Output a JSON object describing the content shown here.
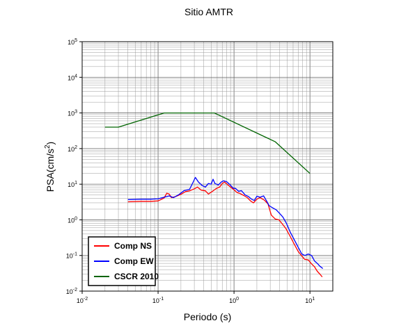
{
  "chart_data": {
    "type": "line",
    "title": "Sitio AMTR",
    "xlabel": "Periodo (s)",
    "ylabel": "PSA(cm/s",
    "ylabel_sup": "2",
    "ylabel_close": ")",
    "x_scale": "log",
    "y_scale": "log",
    "xlim": [
      0.01,
      20
    ],
    "ylim": [
      0.01,
      100000
    ],
    "grid": true,
    "legend_position": "bottom-left",
    "x_ticks": [
      {
        "base": "10",
        "exp": "-2",
        "value": 0.01
      },
      {
        "base": "10",
        "exp": "-1",
        "value": 0.1
      },
      {
        "base": "10",
        "exp": "0",
        "value": 1
      },
      {
        "base": "10",
        "exp": "1",
        "value": 10
      }
    ],
    "y_ticks": [
      {
        "base": "10",
        "exp": "-2",
        "value": 0.01
      },
      {
        "base": "10",
        "exp": "-1",
        "value": 0.1
      },
      {
        "base": "10",
        "exp": "0",
        "value": 1
      },
      {
        "base": "10",
        "exp": "1",
        "value": 10
      },
      {
        "base": "10",
        "exp": "2",
        "value": 100
      },
      {
        "base": "10",
        "exp": "3",
        "value": 1000
      },
      {
        "base": "10",
        "exp": "4",
        "value": 10000
      },
      {
        "base": "10",
        "exp": "5",
        "value": 100000
      }
    ],
    "series": [
      {
        "name": "Comp NS",
        "color": "#ff0000",
        "points": [
          [
            0.04,
            3.2
          ],
          [
            0.06,
            3.3
          ],
          [
            0.08,
            3.3
          ],
          [
            0.1,
            3.4
          ],
          [
            0.12,
            4.1
          ],
          [
            0.13,
            5.6
          ],
          [
            0.14,
            5.3
          ],
          [
            0.15,
            4.2
          ],
          [
            0.17,
            4.5
          ],
          [
            0.2,
            5.2
          ],
          [
            0.23,
            6.2
          ],
          [
            0.26,
            6.5
          ],
          [
            0.3,
            7.4
          ],
          [
            0.33,
            8.3
          ],
          [
            0.37,
            6.8
          ],
          [
            0.42,
            6.5
          ],
          [
            0.46,
            5.3
          ],
          [
            0.52,
            6.3
          ],
          [
            0.58,
            7.5
          ],
          [
            0.65,
            8.4
          ],
          [
            0.7,
            10.5
          ],
          [
            0.75,
            11.5
          ],
          [
            0.82,
            9.8
          ],
          [
            0.9,
            8.3
          ],
          [
            1.0,
            7.0
          ],
          [
            1.1,
            5.8
          ],
          [
            1.2,
            5.5
          ],
          [
            1.35,
            4.8
          ],
          [
            1.5,
            4.2
          ],
          [
            1.65,
            3.4
          ],
          [
            1.8,
            3.0
          ],
          [
            2.0,
            3.8
          ],
          [
            2.2,
            4.2
          ],
          [
            2.5,
            3.6
          ],
          [
            2.8,
            2.8
          ],
          [
            3.1,
            1.35
          ],
          [
            3.5,
            1.05
          ],
          [
            3.9,
            1.0
          ],
          [
            4.3,
            0.78
          ],
          [
            4.8,
            0.58
          ],
          [
            5.5,
            0.34
          ],
          [
            6.2,
            0.21
          ],
          [
            7.0,
            0.13
          ],
          [
            7.7,
            0.1
          ],
          [
            8.5,
            0.078
          ],
          [
            9.5,
            0.075
          ],
          [
            10.5,
            0.058
          ],
          [
            11.5,
            0.048
          ],
          [
            12.5,
            0.036
          ],
          [
            13.5,
            0.03
          ],
          [
            14.5,
            0.025
          ]
        ]
      },
      {
        "name": "Comp EW",
        "color": "#0000ff",
        "points": [
          [
            0.04,
            3.7
          ],
          [
            0.06,
            3.8
          ],
          [
            0.08,
            3.8
          ],
          [
            0.1,
            3.9
          ],
          [
            0.12,
            4.3
          ],
          [
            0.14,
            4.7
          ],
          [
            0.16,
            4.2
          ],
          [
            0.19,
            5.2
          ],
          [
            0.22,
            6.6
          ],
          [
            0.26,
            7.2
          ],
          [
            0.29,
            11.5
          ],
          [
            0.31,
            15.5
          ],
          [
            0.34,
            11.5
          ],
          [
            0.38,
            9.2
          ],
          [
            0.42,
            8.3
          ],
          [
            0.46,
            10.5
          ],
          [
            0.5,
            10.0
          ],
          [
            0.53,
            13.8
          ],
          [
            0.56,
            10.5
          ],
          [
            0.62,
            9.5
          ],
          [
            0.68,
            11.5
          ],
          [
            0.73,
            12.5
          ],
          [
            0.8,
            11.8
          ],
          [
            0.88,
            9.8
          ],
          [
            0.97,
            7.8
          ],
          [
            1.05,
            7.6
          ],
          [
            1.15,
            6.3
          ],
          [
            1.25,
            6.6
          ],
          [
            1.4,
            5.0
          ],
          [
            1.55,
            4.5
          ],
          [
            1.7,
            3.8
          ],
          [
            1.85,
            3.5
          ],
          [
            2.0,
            4.6
          ],
          [
            2.2,
            4.3
          ],
          [
            2.45,
            4.7
          ],
          [
            2.7,
            3.3
          ],
          [
            2.9,
            2.5
          ],
          [
            3.2,
            2.2
          ],
          [
            3.6,
            1.9
          ],
          [
            4.0,
            1.5
          ],
          [
            4.4,
            1.2
          ],
          [
            4.9,
            0.8
          ],
          [
            5.5,
            0.45
          ],
          [
            6.2,
            0.28
          ],
          [
            7.0,
            0.17
          ],
          [
            7.8,
            0.11
          ],
          [
            8.6,
            0.1
          ],
          [
            9.5,
            0.11
          ],
          [
            10.5,
            0.1
          ],
          [
            11.5,
            0.07
          ],
          [
            12.5,
            0.06
          ],
          [
            13.5,
            0.05
          ],
          [
            14.8,
            0.043
          ]
        ]
      },
      {
        "name": "CSCR 2010",
        "color": "#006400",
        "points": [
          [
            0.02,
            400
          ],
          [
            0.03,
            400
          ],
          [
            0.12,
            1000
          ],
          [
            0.55,
            1000
          ],
          [
            3.5,
            155
          ],
          [
            10.0,
            20
          ]
        ]
      }
    ]
  }
}
